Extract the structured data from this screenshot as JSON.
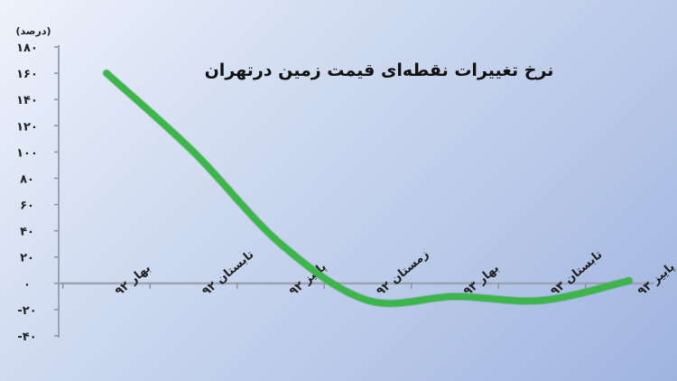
{
  "chart_data": {
    "type": "line",
    "title": "نرخ تغییرات نقطه‌ای قیمت زمین درتهران",
    "unit_label": "(درصد)",
    "ylim": [
      -40,
      180
    ],
    "y_ticks": [
      {
        "value": 180,
        "label": "۱۸۰"
      },
      {
        "value": 160,
        "label": "۱۶۰"
      },
      {
        "value": 140,
        "label": "۱۴۰"
      },
      {
        "value": 120,
        "label": "۱۲۰"
      },
      {
        "value": 100,
        "label": "۱۰۰"
      },
      {
        "value": 80,
        "label": "۸۰"
      },
      {
        "value": 60,
        "label": "۶۰"
      },
      {
        "value": 40,
        "label": "۴۰"
      },
      {
        "value": 20,
        "label": "۲۰"
      },
      {
        "value": 0,
        "label": "۰"
      },
      {
        "value": -20,
        "label": "-۲۰"
      },
      {
        "value": -40,
        "label": "-۴۰"
      }
    ],
    "categories": [
      "بهار ۹۲",
      "تابستان ۹۲",
      "پاییز ۹۲",
      "زمستان ۹۲",
      "بهار ۹۳",
      "تابستان ۹۳",
      "پاییز ۹۳"
    ],
    "series": [
      {
        "values": [
          160,
          100,
          30,
          -13,
          -10,
          -13,
          2
        ]
      }
    ],
    "grid": false,
    "line_color": "#3cb54a"
  }
}
